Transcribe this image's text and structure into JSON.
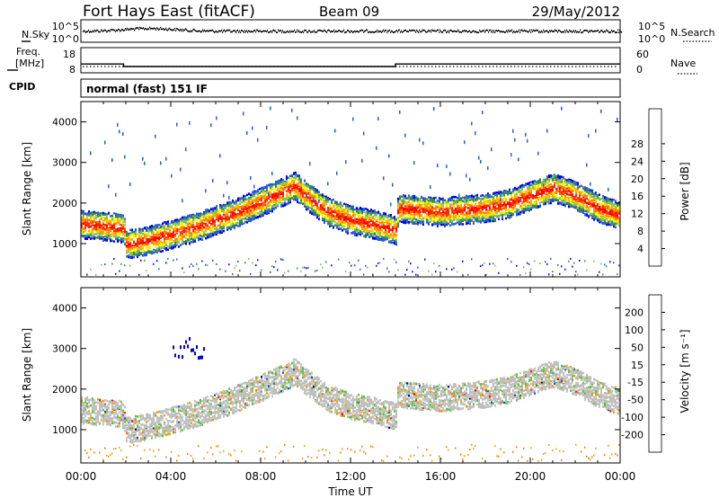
{
  "header": {
    "station": "Fort Hays East (fitACF)",
    "beam": "Beam 09",
    "date": "29/May/2012"
  },
  "top_panels": {
    "nsky_label": "N.Sky",
    "nsearch_label": "N.Search",
    "noise_tick_high": "10^5",
    "noise_tick_low": "10^0",
    "freq_label_line1": "Freq.",
    "freq_label_line2": "[MHz]",
    "freq_ticks": [
      "18",
      "8"
    ],
    "nave_label": "Nave",
    "nave_ticks": [
      "60",
      "0"
    ],
    "cpid_label": "CPID",
    "cpid_text": "normal (fast) 151 IF",
    "frequency_series": {
      "x_hours": [
        0,
        1.9,
        1.9,
        14,
        14,
        24
      ],
      "mhz": [
        11.5,
        11.5,
        10.5,
        10.5,
        11.5,
        11.5
      ]
    }
  },
  "chart_data": [
    {
      "type": "heatmap",
      "panel": "power",
      "xlabel": "Time UT",
      "ylabel": "Slant Range [km]",
      "xlim_hours": [
        0,
        24
      ],
      "ylim": [
        180,
        4500
      ],
      "x_tick_labels": [
        "00:00",
        "04:00",
        "08:00",
        "12:00",
        "16:00",
        "20:00",
        "00:00"
      ],
      "y_ticks": [
        1000,
        2000,
        3000,
        4000
      ],
      "colorbar": {
        "label": "Power [dB]",
        "ticks": [
          4,
          8,
          12,
          16,
          20,
          24,
          28
        ],
        "colors": [
          "#0000ff",
          "#2a5bd6",
          "#3c8a50",
          "#7fc16a",
          "#f5f500",
          "#ffb000",
          "#ff7f00",
          "#ff2a00",
          "#ff0000"
        ]
      },
      "echo_bands": [
        {
          "name": "main",
          "points": [
            [
              0,
              1500
            ],
            [
              1,
              1450
            ],
            [
              1.9,
              1400
            ],
            [
              2,
              1000
            ],
            [
              3,
              1100
            ],
            [
              4,
              1250
            ],
            [
              5,
              1400
            ],
            [
              6,
              1600
            ],
            [
              7,
              1800
            ],
            [
              8,
              2050
            ],
            [
              9,
              2300
            ],
            [
              9.5,
              2450
            ],
            [
              10,
              2200
            ],
            [
              11,
              1800
            ],
            [
              12,
              1600
            ],
            [
              13,
              1500
            ],
            [
              14,
              1350
            ],
            [
              14.1,
              1900
            ],
            [
              15,
              1850
            ],
            [
              16,
              1800
            ],
            [
              17,
              1850
            ],
            [
              18,
              1900
            ],
            [
              19,
              2000
            ],
            [
              20,
              2200
            ],
            [
              21,
              2400
            ],
            [
              22,
              2200
            ],
            [
              23,
              1900
            ],
            [
              24,
              1700
            ]
          ]
        }
      ]
    },
    {
      "type": "heatmap",
      "panel": "velocity",
      "xlabel": "Time UT",
      "ylabel": "Slant Range [km]",
      "xlim_hours": [
        0,
        24
      ],
      "ylim": [
        180,
        4500
      ],
      "x_tick_labels": [
        "00:00",
        "04:00",
        "08:00",
        "12:00",
        "16:00",
        "20:00",
        "00:00"
      ],
      "y_ticks": [
        1000,
        2000,
        3000,
        4000
      ],
      "colorbar": {
        "label": "Velocity [m s⁻¹]",
        "ticks": [
          "200",
          "100",
          "50",
          "15",
          "-15",
          "-50",
          "-100",
          "-200"
        ],
        "colors": [
          "#0000c8",
          "#2050d8",
          "#308a50",
          "#60c040",
          "#c0c0c0",
          "#f0a000",
          "#ff7800",
          "#ff3000",
          "#ff0000"
        ]
      }
    }
  ]
}
